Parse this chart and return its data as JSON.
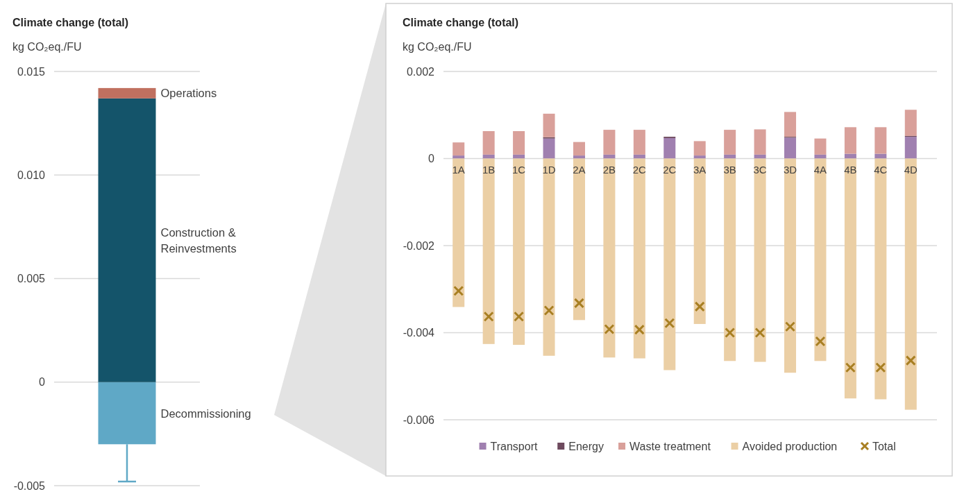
{
  "chart_data": [
    {
      "type": "bar",
      "title": "Climate change (total)",
      "ylabel": "kg CO₂eq./FU",
      "stacked": true,
      "categories": [
        null
      ],
      "ylim": [
        -0.005,
        0.015
      ],
      "yticks": [
        -0.005,
        0,
        {
          "value": 0.005,
          "label": "0.005"
        },
        {
          "value": 0.01,
          "label": "0.010"
        },
        0.015
      ],
      "grid": "y",
      "legend": false,
      "series": [
        {
          "name": "Decommissioning",
          "color": "#5fa8c6",
          "values": [
            -0.003
          ],
          "errors": [
            [
              -0.0048,
              -0.003
            ]
          ]
        },
        {
          "name": "Construction & Reinvestments",
          "color": "#14546a",
          "values": [
            0.0137
          ]
        },
        {
          "name": "Operations",
          "color": "#c07060",
          "values": [
            0.0005
          ]
        }
      ]
    },
    {
      "type": "bar",
      "title": "Climate change (total)",
      "ylabel": "kg CO₂eq./FU",
      "stacked": true,
      "categories": [
        "1A",
        "1B",
        "1C",
        "1D",
        "2A",
        "2B",
        "2C",
        "2C",
        "3A",
        "3B",
        "3C",
        "3D",
        "4A",
        "4B",
        "4C",
        "4D"
      ],
      "ylim": [
        -0.006,
        0.002
      ],
      "yticks": [
        -0.006,
        -0.004,
        -0.002,
        0,
        0.002
      ],
      "grid": "y",
      "legend": "bottom",
      "series": [
        {
          "name": "Transport",
          "color": "#a080b0",
          "values": [
            7e-05,
            9e-05,
            9e-05,
            0.00046,
            7e-05,
            9e-05,
            9e-05,
            0.00047,
            7e-05,
            9e-05,
            9e-05,
            0.00048,
            9e-05,
            0.00011,
            0.00011,
            0.0005
          ]
        },
        {
          "name": "Energy",
          "color": "#6e4a5e",
          "values": [
            0,
            0,
            0,
            3e-05,
            0,
            0,
            0,
            3e-05,
            0,
            0,
            0,
            2e-05,
            0,
            0,
            0,
            2e-05
          ]
        },
        {
          "name": "Waste treatment",
          "color": "#d9a09a",
          "values": [
            0.0003,
            0.00054,
            0.00054,
            0.00054,
            0.00031,
            0.00057,
            0.00057,
            0,
            0.00033,
            0.00057,
            0.00058,
            0.00057,
            0.00037,
            0.00061,
            0.00061,
            0.0006
          ]
        },
        {
          "name": "Avoided production",
          "color": "#ebcfa5",
          "values": [
            -0.00341,
            -0.00426,
            -0.00428,
            -0.00453,
            -0.00371,
            -0.00457,
            -0.00459,
            -0.00486,
            -0.0038,
            -0.00465,
            -0.00467,
            -0.00492,
            -0.00465,
            -0.00551,
            -0.00553,
            -0.00577
          ]
        },
        {
          "name": "Total",
          "type": "scatter",
          "marker": "cross",
          "color": "#a87f22",
          "values": [
            -0.00304,
            -0.00363,
            -0.00363,
            -0.00349,
            -0.00332,
            -0.00392,
            -0.00393,
            -0.00378,
            -0.0034,
            -0.004,
            -0.004,
            -0.00386,
            -0.0042,
            -0.0048,
            -0.0048,
            -0.00464
          ]
        }
      ]
    }
  ]
}
